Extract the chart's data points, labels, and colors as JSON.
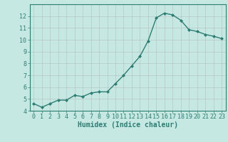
{
  "x": [
    0,
    1,
    2,
    3,
    4,
    5,
    6,
    7,
    8,
    9,
    10,
    11,
    12,
    13,
    14,
    15,
    16,
    17,
    18,
    19,
    20,
    21,
    22,
    23
  ],
  "y": [
    4.6,
    4.3,
    4.6,
    4.9,
    4.9,
    5.3,
    5.2,
    5.5,
    5.6,
    5.6,
    6.3,
    7.0,
    7.8,
    8.6,
    9.9,
    11.85,
    12.25,
    12.1,
    11.65,
    10.85,
    10.7,
    10.45,
    10.3,
    10.1
  ],
  "line_color": "#2e7d72",
  "marker": "D",
  "markersize": 2.0,
  "linewidth": 1.0,
  "xlabel": "Humidex (Indice chaleur)",
  "xlim": [
    -0.5,
    23.5
  ],
  "ylim": [
    4,
    13
  ],
  "yticks": [
    4,
    5,
    6,
    7,
    8,
    9,
    10,
    11,
    12
  ],
  "xticks": [
    0,
    1,
    2,
    3,
    4,
    5,
    6,
    7,
    8,
    9,
    10,
    11,
    12,
    13,
    14,
    15,
    16,
    17,
    18,
    19,
    20,
    21,
    22,
    23
  ],
  "bg_color": "#c5e8e3",
  "grid_color": "#b0b0b0",
  "tick_color": "#2e7d72",
  "label_color": "#2e7d72",
  "xlabel_fontsize": 7.0,
  "tick_fontsize": 6.0,
  "grid_alpha": 0.6,
  "spine_color": "#2e7d72"
}
